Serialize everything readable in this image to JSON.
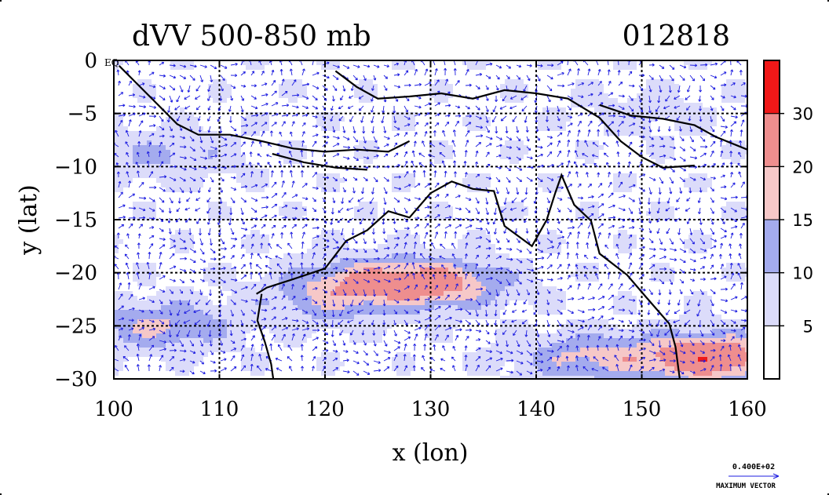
{
  "chart_data": {
    "type": "heatmap",
    "title": "dVV 500-850 mb",
    "date_label": "012818",
    "xlabel": "x (lon)",
    "ylabel": "y (lat)",
    "xlim": [
      100,
      160
    ],
    "ylim": [
      -30,
      0
    ],
    "x_ticks": [
      "100",
      "110",
      "120",
      "130",
      "140",
      "150",
      "160"
    ],
    "y_ticks": [
      "0",
      "−5",
      "−10",
      "−15",
      "−20",
      "−25",
      "−30"
    ],
    "top_left_tick_suffix": "EQ",
    "grid": true,
    "colorbar": {
      "levels": [
        0,
        5,
        10,
        15,
        20,
        30,
        35
      ],
      "tick_labels": [
        "5",
        "10",
        "15",
        "20",
        "30"
      ],
      "colors": [
        "#ffffff",
        "#dcdcfa",
        "#a4abee",
        "#f6c8c8",
        "#ee8e8e",
        "#f01818"
      ]
    },
    "legend_vector": {
      "value_label": "0.400E+02",
      "caption": "MAXIMUM VECTOR"
    },
    "field_features": [
      {
        "lon": 130.5,
        "lat": -21.0,
        "value": 22
      },
      {
        "lon": 123.0,
        "lat": -20.8,
        "value": 16
      },
      {
        "lon": 104.5,
        "lat": -25.0,
        "value": 16
      },
      {
        "lon": 145.0,
        "lat": -28.0,
        "value": 16
      },
      {
        "lon": 156.5,
        "lat": -28.0,
        "value": 28
      },
      {
        "lon": 120.0,
        "lat": -23.0,
        "value": 11
      },
      {
        "lon": 105.0,
        "lat": -9.0,
        "value": 11
      },
      {
        "lon": 150.0,
        "lat": -5.0,
        "value": 7
      }
    ],
    "accent_color_vectors": "#1c1ce0"
  }
}
